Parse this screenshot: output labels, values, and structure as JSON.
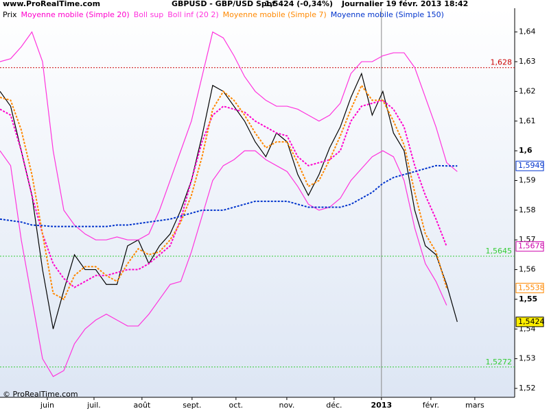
{
  "header": {
    "site": "www.ProRealTime.com",
    "instrument": "GBPUSD - GBP/USD Spot",
    "quote": "1,5424 (-0,34%)",
    "period": "Journalier  19 févr. 2013 18:42"
  },
  "footer": "© ProRealTime.com",
  "chart_data": {
    "type": "line",
    "x": [
      0,
      1,
      2,
      3,
      4,
      5,
      6,
      7,
      8,
      9,
      10,
      11,
      12,
      13,
      14,
      15,
      16,
      17,
      18,
      19,
      20,
      21,
      22,
      23,
      24,
      25,
      26,
      27,
      28,
      29,
      30,
      31,
      32,
      33,
      34,
      35,
      36,
      37,
      38,
      39,
      40,
      41,
      42,
      43
    ],
    "xlim": [
      0,
      48.4
    ],
    "xticks": [
      {
        "value": 4.45,
        "label": "juin"
      },
      {
        "value": 8.84,
        "label": "juil."
      },
      {
        "value": 13.35,
        "label": "août"
      },
      {
        "value": 18.06,
        "label": "sept."
      },
      {
        "value": 22.19,
        "label": "oct."
      },
      {
        "value": 26.97,
        "label": "nov."
      },
      {
        "value": 31.42,
        "label": "déc."
      },
      {
        "value": 35.87,
        "label": "2013"
      },
      {
        "value": 40.52,
        "label": "févr."
      },
      {
        "value": 44.65,
        "label": "mars"
      }
    ],
    "ylim": [
      1.517,
      1.648
    ],
    "yticks": [
      {
        "value": 1.52,
        "label": "1,52"
      },
      {
        "value": 1.53,
        "label": "1,53"
      },
      {
        "value": 1.54,
        "label": "1,54"
      },
      {
        "value": 1.55,
        "label": "1,55"
      },
      {
        "value": 1.56,
        "label": "1,56"
      },
      {
        "value": 1.57,
        "label": "1,57"
      },
      {
        "value": 1.58,
        "label": "1,58"
      },
      {
        "value": 1.59,
        "label": "1,59"
      },
      {
        "value": 1.6,
        "label": "1,6"
      },
      {
        "value": 1.61,
        "label": "1,61"
      },
      {
        "value": 1.62,
        "label": "1,62"
      },
      {
        "value": 1.63,
        "label": "1,63"
      },
      {
        "value": 1.64,
        "label": "1,64"
      }
    ],
    "series": [
      {
        "name": "Prix",
        "color": "#000000",
        "dash": false,
        "values": [
          1.62,
          1.615,
          1.6,
          1.585,
          1.56,
          1.54,
          1.553,
          1.565,
          1.56,
          1.56,
          1.555,
          1.555,
          1.568,
          1.57,
          1.562,
          1.568,
          1.572,
          1.58,
          1.59,
          1.605,
          1.622,
          1.62,
          1.615,
          1.61,
          1.603,
          1.598,
          1.606,
          1.603,
          1.592,
          1.585,
          1.592,
          1.601,
          1.608,
          1.618,
          1.626,
          1.612,
          1.62,
          1.606,
          1.6,
          1.58,
          1.568,
          1.565,
          1.555,
          1.5424
        ]
      },
      {
        "name": "Moyenne mobile (Simple 20)",
        "color": "#ff00cc",
        "dash": true,
        "values": [
          1.614,
          1.612,
          1.6,
          1.585,
          1.572,
          1.562,
          1.557,
          1.554,
          1.556,
          1.558,
          1.558,
          1.559,
          1.56,
          1.56,
          1.562,
          1.565,
          1.568,
          1.577,
          1.59,
          1.603,
          1.612,
          1.615,
          1.614,
          1.613,
          1.61,
          1.608,
          1.606,
          1.605,
          1.598,
          1.595,
          1.596,
          1.597,
          1.6,
          1.61,
          1.615,
          1.616,
          1.617,
          1.614,
          1.608,
          1.595,
          1.585,
          1.577,
          1.5678,
          null
        ]
      },
      {
        "name": "Boll sup",
        "color": "#ff33dd",
        "dash": false,
        "values": [
          1.63,
          1.631,
          1.635,
          1.64,
          1.63,
          1.6,
          1.58,
          1.575,
          1.572,
          1.57,
          1.57,
          1.571,
          1.57,
          1.57,
          1.572,
          1.58,
          1.59,
          1.6,
          1.61,
          1.625,
          1.64,
          1.638,
          1.632,
          1.625,
          1.62,
          1.617,
          1.615,
          1.615,
          1.614,
          1.612,
          1.61,
          1.612,
          1.616,
          1.626,
          1.63,
          1.63,
          1.632,
          1.633,
          1.633,
          1.628,
          1.618,
          1.608,
          1.596,
          1.593
        ]
      },
      {
        "name": "Boll inf (20 2)",
        "color": "#ff33dd",
        "dash": false,
        "values": [
          1.6,
          1.595,
          1.57,
          1.55,
          1.53,
          1.524,
          1.526,
          1.535,
          1.54,
          1.543,
          1.545,
          1.543,
          1.541,
          1.541,
          1.545,
          1.55,
          1.555,
          1.556,
          1.566,
          1.578,
          1.59,
          1.595,
          1.597,
          1.6,
          1.6,
          1.597,
          1.595,
          1.593,
          1.588,
          1.582,
          1.58,
          1.581,
          1.584,
          1.59,
          1.594,
          1.598,
          1.6,
          1.598,
          1.59,
          1.574,
          1.562,
          1.556,
          1.548,
          null
        ]
      },
      {
        "name": "Moyenne mobile (Simple 7)",
        "color": "#ff8800",
        "dash": true,
        "values": [
          1.618,
          1.617,
          1.607,
          1.592,
          1.572,
          1.552,
          1.55,
          1.558,
          1.561,
          1.561,
          1.558,
          1.556,
          1.562,
          1.567,
          1.565,
          1.566,
          1.57,
          1.576,
          1.585,
          1.598,
          1.614,
          1.62,
          1.617,
          1.612,
          1.606,
          1.601,
          1.603,
          1.603,
          1.596,
          1.588,
          1.59,
          1.597,
          1.605,
          1.614,
          1.622,
          1.617,
          1.617,
          1.61,
          1.602,
          1.586,
          1.572,
          1.566,
          1.5538,
          null
        ]
      },
      {
        "name": "Moyenne mobile (Simple 150)",
        "color": "#0033cc",
        "dash": true,
        "values": [
          1.577,
          1.5765,
          1.576,
          1.575,
          1.5748,
          1.5745,
          1.5745,
          1.5745,
          1.5745,
          1.5745,
          1.5745,
          1.575,
          1.575,
          1.5755,
          1.576,
          1.5765,
          1.577,
          1.578,
          1.579,
          1.58,
          1.58,
          1.58,
          1.581,
          1.582,
          1.583,
          1.583,
          1.583,
          1.583,
          1.582,
          1.581,
          1.581,
          1.581,
          1.581,
          1.582,
          1.584,
          1.586,
          1.589,
          1.591,
          1.592,
          1.593,
          1.594,
          1.595,
          1.5949,
          1.5949
        ]
      }
    ],
    "levels": [
      {
        "value": 1.628,
        "label": "1,628",
        "color": "#cc0000"
      },
      {
        "value": 1.5645,
        "label": "1,5645",
        "color": "#33cc33"
      },
      {
        "value": 1.5272,
        "label": "1,5272",
        "color": "#33cc33"
      }
    ],
    "markers": [
      {
        "value": 1.5949,
        "label": "1,5949",
        "color": "#0033cc",
        "bg": "#ffffff"
      },
      {
        "value": 1.5678,
        "label": "1,5678",
        "color": "#cc00aa",
        "bg": "#ffffff"
      },
      {
        "value": 1.5538,
        "label": "1,5538",
        "color": "#ff8800",
        "bg": "#ffffff"
      },
      {
        "value": 1.5424,
        "label": "1,5424",
        "color": "#000000",
        "bg": "#ffee00"
      }
    ],
    "divider": 35.87
  }
}
